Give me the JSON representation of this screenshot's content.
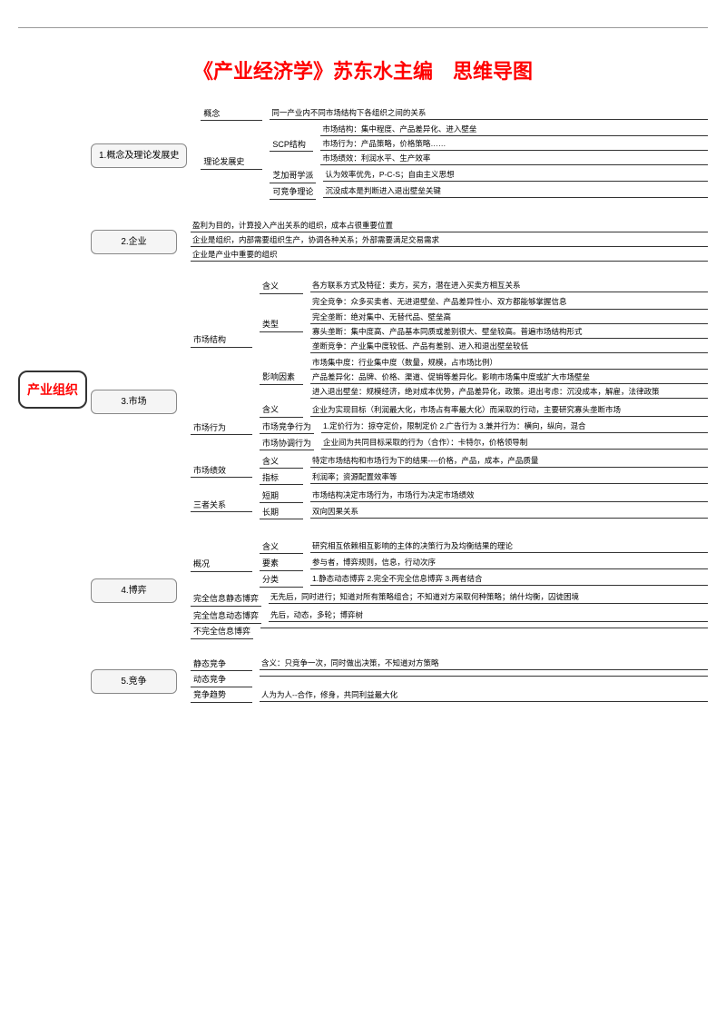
{
  "title": "《产业经济学》苏东水主编　思维导图",
  "title_color": "#ff0000",
  "root": {
    "label": "产业组织",
    "color": "#ff0000"
  },
  "branches": [
    {
      "label": "1.概念及理论发展史",
      "rows": [
        {
          "label": "概念",
          "text": "同一产业内不同市场结构下各组织之间的关系"
        },
        {
          "label": "理论发展史",
          "children": [
            {
              "label": "SCP结构",
              "leaves": [
                "市场结构：集中程度、产品差异化、进入壁垒",
                "市场行为：产品策略，价格策略……",
                "市场绩效：利润水平、生产效率"
              ]
            },
            {
              "label": "芝加哥学派",
              "text": "认为效率优先，P-C-S；自由主义思想"
            },
            {
              "label": "可竞争理论",
              "text": "沉没成本是判断进入退出壁垒关键"
            }
          ]
        }
      ]
    },
    {
      "label": "2.企业",
      "leaves": [
        "盈利为目的，计算投入产出关系的组织，成本占很重要位置",
        "企业是组织，内部需要组织生产，协调各种关系；外部需要满足交易需求",
        "企业是产业中重要的组织"
      ]
    },
    {
      "label": "3.市场",
      "rows": [
        {
          "label": "市场结构",
          "children": [
            {
              "label": "含义",
              "text": "各方联系方式及特征：卖方，买方，潜在进入买卖方相互关系"
            },
            {
              "label": "类型",
              "leaves": [
                "完全竞争：众多买卖者、无进退壁垒、产品差异性小、双方都能够掌握信息",
                "完全垄断：绝对集中、无替代品、壁垒高",
                "寡头垄断：集中度高、产品基本同质或差别很大、壁垒较高。普遍市场结构形式",
                "垄断竞争：产业集中度较低、产品有差别、进入和退出壁垒较低"
              ]
            },
            {
              "label": "影响因素",
              "leaves": [
                "市场集中度：行业集中度（数量，规模，占市场比例）",
                "产品差异化：品牌、价格、渠道、促销等差异化。影响市场集中度或扩大市场壁垒",
                "进入退出壁垒：规模经济，绝对成本优势，产品差异化，政策。退出考虑：沉没成本，解雇，法律政策"
              ]
            }
          ]
        },
        {
          "label": "市场行为",
          "children": [
            {
              "label": "含义",
              "text": "企业为实现目标（利润最大化，市场占有率最大化）而采取的行动，主要研究寡头垄断市场"
            },
            {
              "label": "市场竞争行为",
              "text": "1.定价行为：掠夺定价，限制定价 2.广告行为 3.兼并行为：横向，纵向，混合"
            },
            {
              "label": "市场协调行为",
              "text": "企业间为共同目标采取的行为（合作）：卡特尔，价格领导制"
            }
          ]
        },
        {
          "label": "市场绩效",
          "children": [
            {
              "label": "含义",
              "text": "特定市场结构和市场行为下的结果----价格，产品，成本，产品质量"
            },
            {
              "label": "指标",
              "text": "利润率；资源配置效率等"
            }
          ]
        },
        {
          "label": "三者关系",
          "children": [
            {
              "label": "短期",
              "text": "市场结构决定市场行为，市场行为决定市场绩效"
            },
            {
              "label": "长期",
              "text": "双向因果关系"
            }
          ]
        }
      ]
    },
    {
      "label": "4.博弈",
      "rows": [
        {
          "label": "概况",
          "children": [
            {
              "label": "含义",
              "text": "研究相互依赖相互影响的主体的决策行为及均衡结果的理论"
            },
            {
              "label": "要素",
              "text": "参与者，博弈规则，信息，行动次序"
            },
            {
              "label": "分类",
              "text": "1.静态动态博弈 2.完全不完全信息博弈 3.两者结合"
            }
          ]
        },
        {
          "label": "完全信息静态博弈",
          "children": [
            {
              "text": "无先后，同时进行；知道对所有策略组合；不知道对方采取何种策略；纳什均衡，囚徒困境"
            }
          ]
        },
        {
          "label": "完全信息动态博弈",
          "text": "先后，动态，多轮；博弈树"
        },
        {
          "label": "不完全信息博弈",
          "text": ""
        }
      ]
    },
    {
      "label": "5.竞争",
      "rows": [
        {
          "label": "静态竞争",
          "text": "含义：只竞争一次，同时做出决策，不知道对方策略"
        },
        {
          "label": "动态竞争",
          "text": ""
        },
        {
          "label": "竞争趋势",
          "text": "人为为人--合作，修身，共同利益最大化"
        }
      ]
    }
  ]
}
